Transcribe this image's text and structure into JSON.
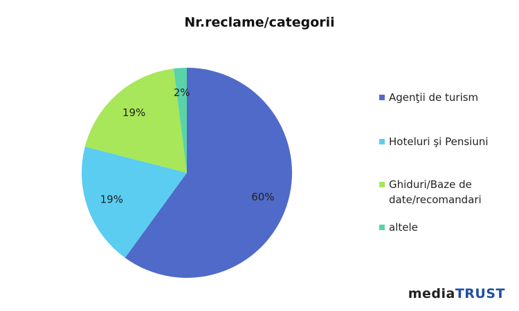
{
  "chart_data": {
    "type": "pie",
    "title": "Nr.reclame/categorii",
    "categories": [
      "Agenţii de turism",
      "Hoteluri şi Pensiuni",
      "Ghiduri/Baze de date/recomandari",
      "altele"
    ],
    "values": [
      60,
      19,
      19,
      2
    ],
    "value_labels": [
      "60%",
      "19%",
      "19%",
      "2%"
    ],
    "colors": [
      "#4f6ac8",
      "#5bcdf0",
      "#a8e65a",
      "#5ad3a8"
    ],
    "legend": "right"
  },
  "logo": {
    "part1": "media",
    "part2": "TRUST"
  }
}
